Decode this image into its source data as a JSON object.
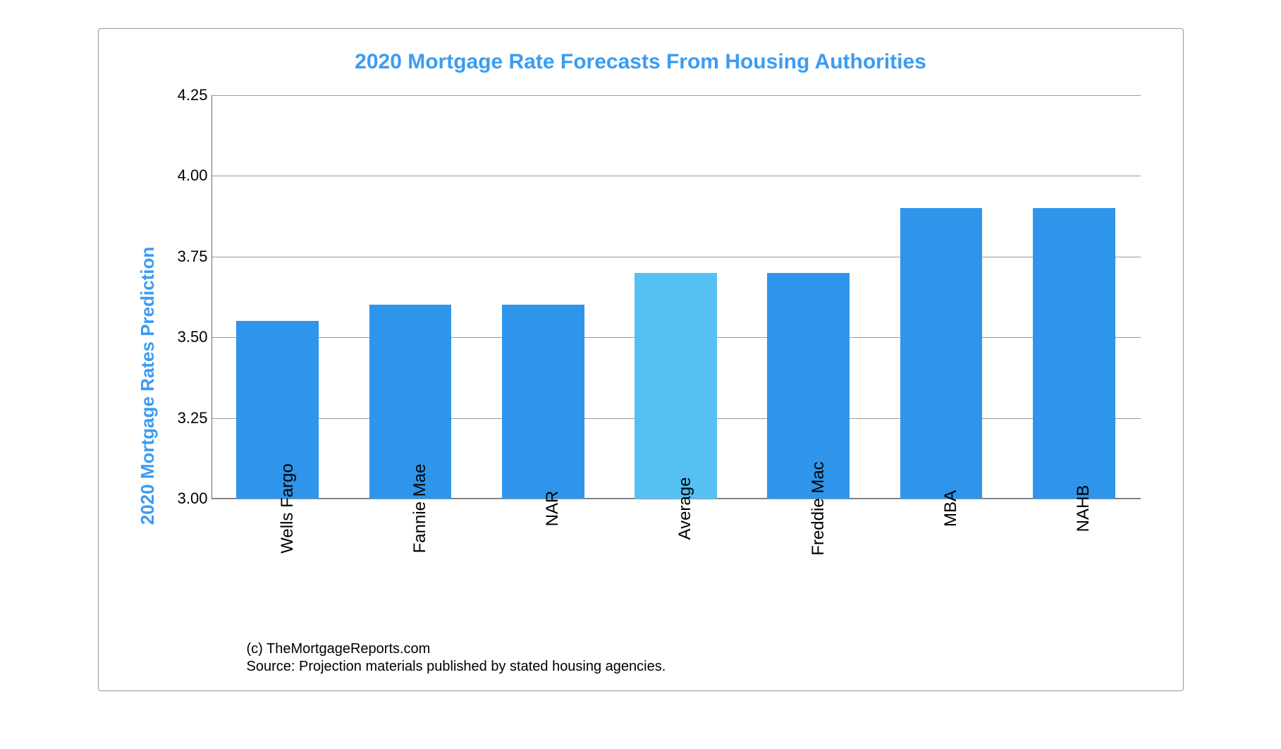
{
  "chart": {
    "type": "bar",
    "title": "2020 Mortgage Rate Forecasts From Housing Authorities",
    "title_color": "#3b9cf2",
    "title_fontsize": 30,
    "ylabel": "2020 Mortgage Rates Prediction",
    "ylabel_color": "#3b9cf2",
    "ylabel_fontsize": 26,
    "categories": [
      "Wells Fargo",
      "Fannie Mae",
      "NAR",
      "Average",
      "Freddie Mac",
      "MBA",
      "NAHB"
    ],
    "values": [
      3.55,
      3.6,
      3.6,
      3.7,
      3.7,
      3.9,
      3.9
    ],
    "bar_colors": [
      "#2e95ea",
      "#2e95ea",
      "#2e95ea",
      "#55c0f2",
      "#2e95ea",
      "#2e95ea",
      "#2e95ea"
    ],
    "bar_width": 0.62,
    "ylim": [
      3.0,
      4.25
    ],
    "yticks": [
      3.0,
      3.25,
      3.5,
      3.75,
      4.0,
      4.25
    ],
    "ytick_labels": [
      "3.00",
      "3.25",
      "3.50",
      "3.75",
      "4.00",
      "4.25"
    ],
    "tick_fontsize": 22,
    "tick_color": "#000000",
    "xlabel_fontsize": 24,
    "xlabel_color": "#000000",
    "grid_color": "#9a9a9a",
    "axis_color": "#6b6b6b",
    "background_color": "#ffffff",
    "border_color": "#999999"
  },
  "footer": {
    "copyright": "(c) TheMortgageReports.com",
    "source": "Source: Projection materials published by stated housing agencies.",
    "fontsize": 20,
    "color": "#000000"
  }
}
